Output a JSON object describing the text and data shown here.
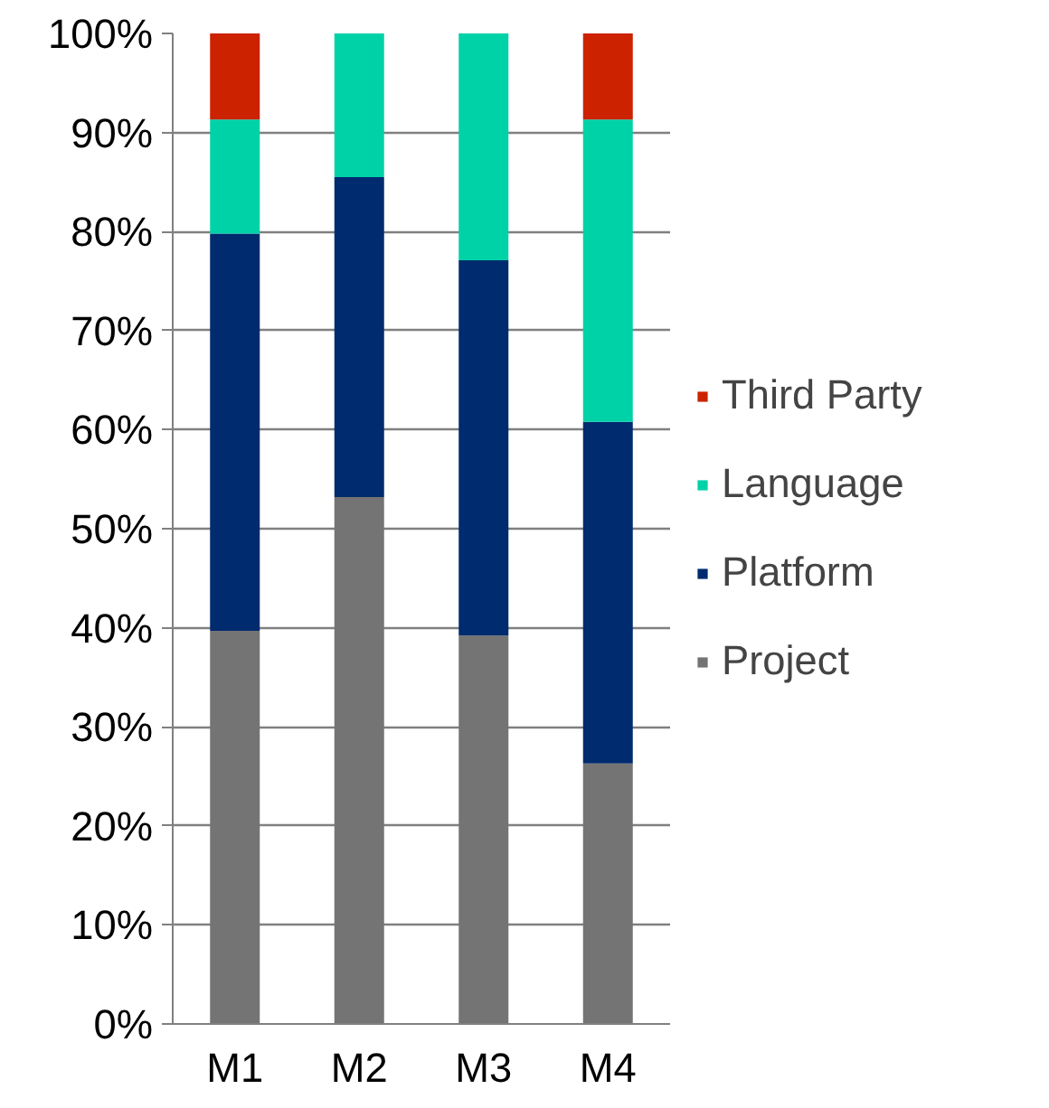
{
  "chart_data": {
    "type": "bar",
    "stacked": true,
    "categories": [
      "M1",
      "M2",
      "M3",
      "M4"
    ],
    "series": [
      {
        "name": "Project",
        "color": "#747474",
        "values": [
          39.7,
          53.2,
          39.2,
          26.3
        ]
      },
      {
        "name": "Platform",
        "color": "#002b6e",
        "values": [
          40.1,
          32.3,
          37.9,
          34.5
        ]
      },
      {
        "name": "Language",
        "color": "#00d2a8",
        "values": [
          11.5,
          14.5,
          22.9,
          30.5
        ]
      },
      {
        "name": "Third Party",
        "color": "#cc2200",
        "values": [
          8.7,
          null,
          null,
          8.7
        ]
      }
    ],
    "ylim": [
      0,
      100
    ],
    "yticks": [
      {
        "value": 0,
        "label": "0%"
      },
      {
        "value": 10,
        "label": "10%"
      },
      {
        "value": 20,
        "label": "20%"
      },
      {
        "value": 30,
        "label": "30%"
      },
      {
        "value": 40,
        "label": "40%"
      },
      {
        "value": 50,
        "label": "50%"
      },
      {
        "value": 60,
        "label": "60%"
      },
      {
        "value": 70,
        "label": "70%"
      },
      {
        "value": 80,
        "label": "80%"
      },
      {
        "value": 90,
        "label": "90%"
      },
      {
        "value": 100,
        "label": "100%"
      }
    ],
    "grid": "y",
    "legend": "right"
  }
}
